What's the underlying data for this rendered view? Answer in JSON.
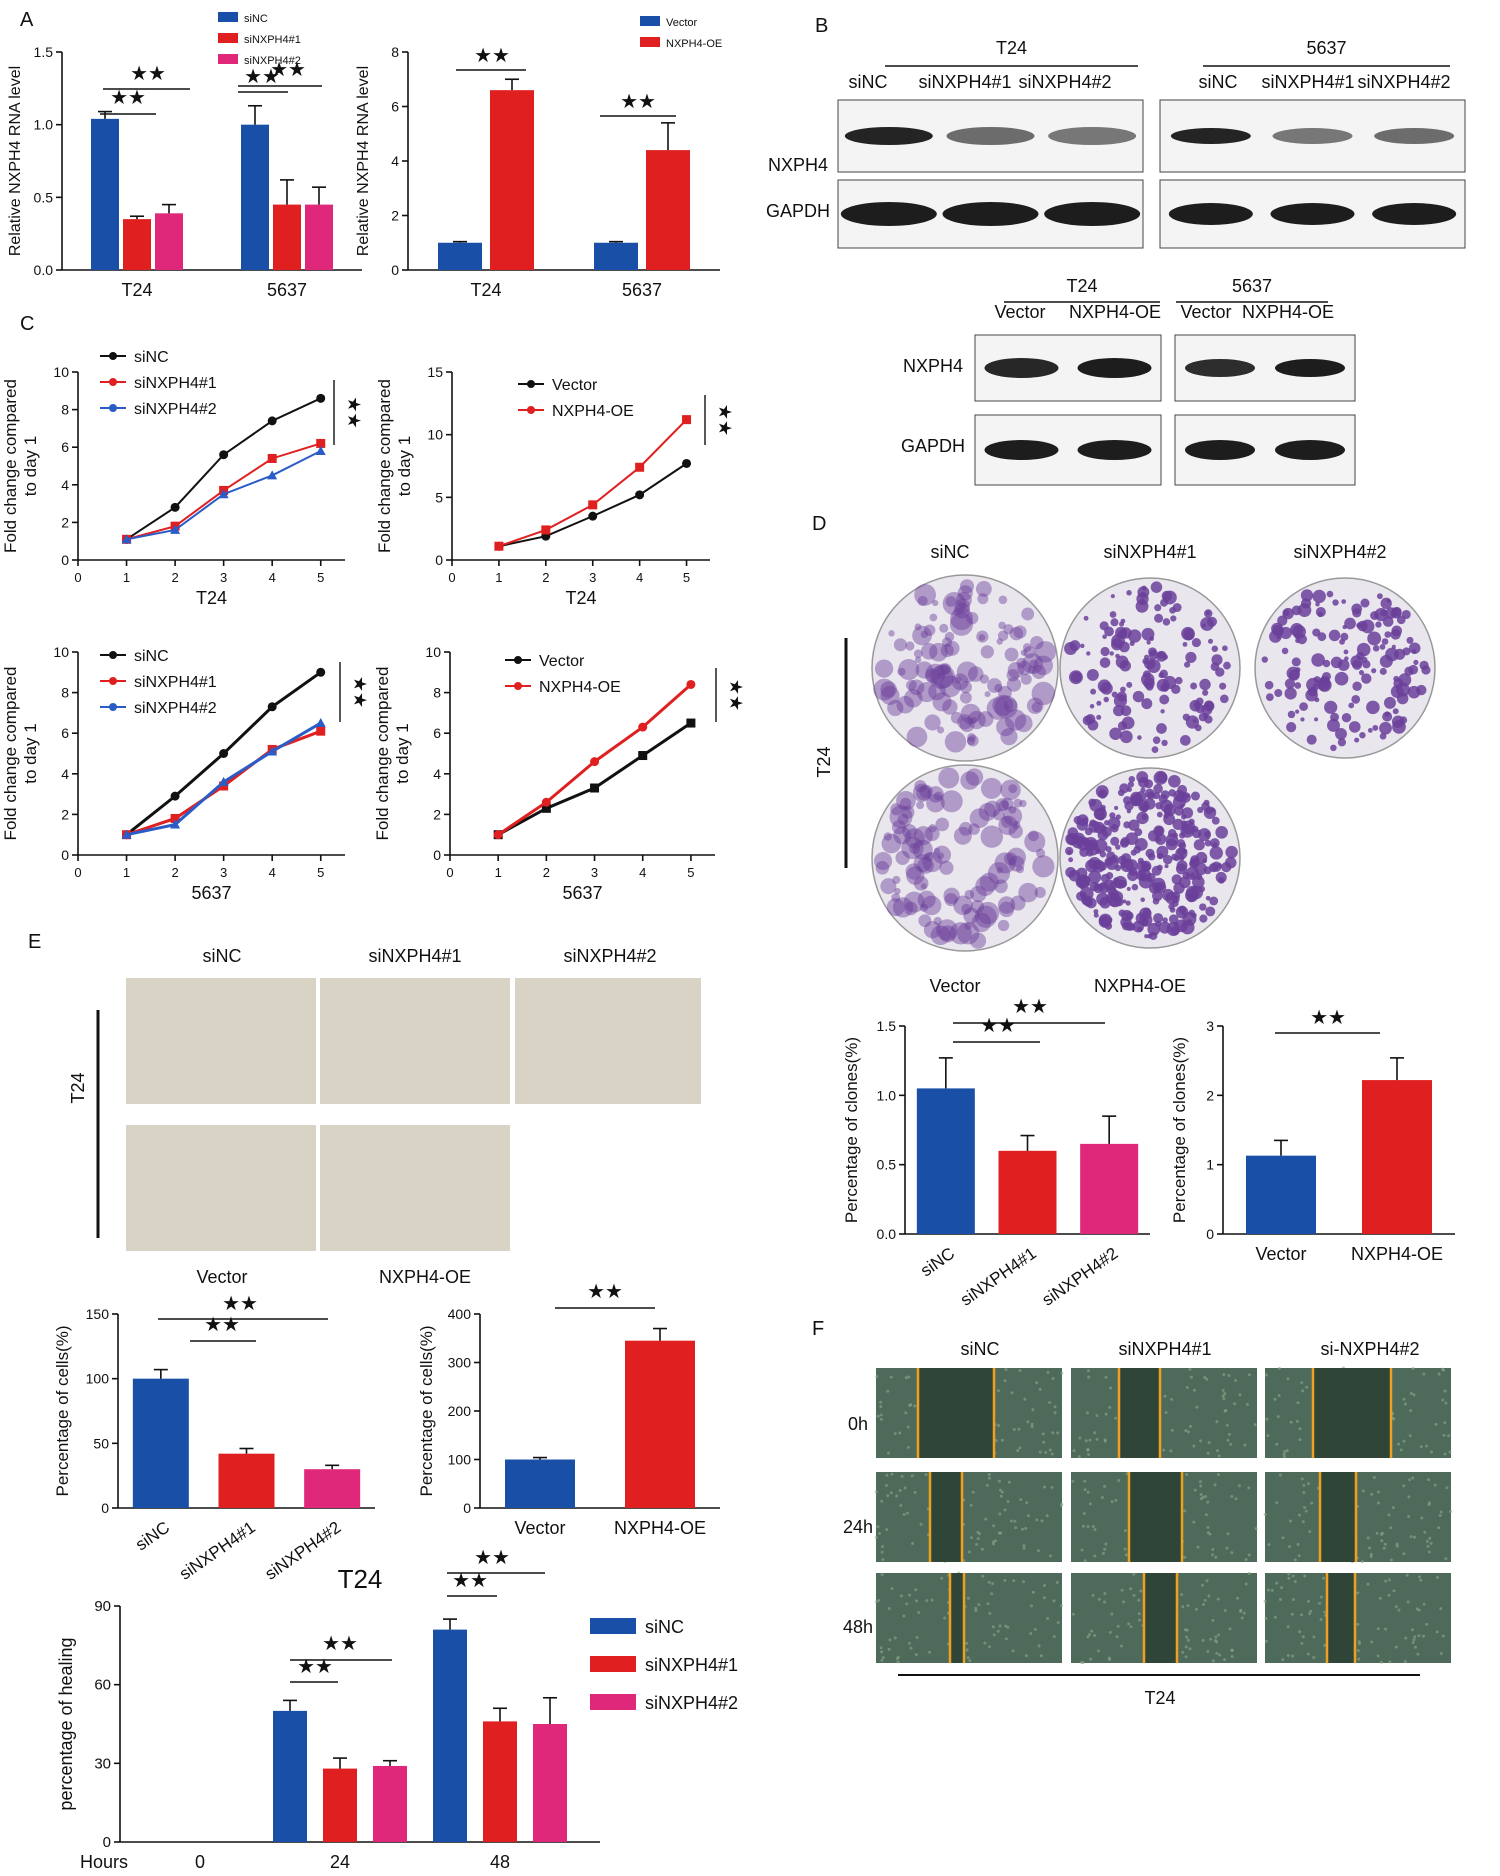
{
  "colors": {
    "blue": "#1a4fa8",
    "red": "#e02020",
    "pink": "#e0287a",
    "black": "#111111",
    "orange": "#f0a020",
    "purple": "#6a3f9a"
  },
  "panels": {
    "A": "A",
    "B": "B",
    "C": "C",
    "D": "D",
    "E": "E",
    "F": "F"
  },
  "star": "★★",
  "t24": "T24",
  "c5637": "5637",
  "blots": [
    {
      "cell": "T24",
      "lanes": [
        "siNC",
        "siNXPH4#1",
        "siNXPH4#2"
      ],
      "rows": [
        "NXPH4",
        "GAPDH"
      ]
    },
    {
      "cell": "5637",
      "lanes": [
        "siNC",
        "siNXPH4#1",
        "siNXPH4#2"
      ],
      "rows": []
    },
    {
      "cell": "T24",
      "lanes": [
        "Vector",
        "NXPH4-OE"
      ],
      "rows": [
        "NXPH4",
        "GAPDH"
      ]
    },
    {
      "cell": "5637",
      "lanes": [
        "Vector",
        "NXPH4-OE"
      ],
      "rows": []
    }
  ],
  "colony": {
    "cols": [
      "siNC",
      "siNXPH4#1",
      "siNXPH4#2"
    ],
    "row2": [
      "Vector",
      "NXPH4-OE"
    ],
    "side": "T24"
  },
  "transwell": {
    "cols": [
      "siNC",
      "siNXPH4#1",
      "siNXPH4#2"
    ],
    "row2": [
      "Vector",
      "NXPH4-OE"
    ],
    "side": "T24"
  },
  "wound": {
    "cols": [
      "siNC",
      "siNXPH4#1",
      "si-NXPH4#2"
    ],
    "rows": [
      "0h",
      "24h",
      "48h"
    ],
    "bottom": "T24"
  },
  "chart_data": [
    {
      "id": "A1",
      "type": "bar",
      "categories": [
        "T24",
        "5637"
      ],
      "ylabel": "Relative NXPH4 RNA level",
      "ylim": [
        0,
        1.5
      ],
      "yticks": [
        "0.0",
        "0.5",
        "1.0",
        "1.5"
      ],
      "series": [
        {
          "name": "siNC",
          "values": [
            1.04,
            1.0
          ],
          "err": [
            0.05,
            0.13
          ]
        },
        {
          "name": "siNXPH4#1",
          "values": [
            0.35,
            0.45
          ],
          "err": [
            0.02,
            0.17
          ]
        },
        {
          "name": "siNXPH4#2",
          "values": [
            0.39,
            0.45
          ],
          "err": [
            0.06,
            0.12
          ]
        }
      ]
    },
    {
      "id": "A2",
      "type": "bar",
      "categories": [
        "T24",
        "5637"
      ],
      "ylabel": "Relative NXPH4 RNA level",
      "ylim": [
        0,
        8
      ],
      "yticks": [
        "0",
        "2",
        "4",
        "6",
        "8"
      ],
      "series": [
        {
          "name": "Vector",
          "values": [
            1.0,
            1.0
          ],
          "err": [
            0.04,
            0.04
          ]
        },
        {
          "name": "NXPH4-OE",
          "values": [
            6.6,
            4.4
          ],
          "err": [
            0.4,
            1.0
          ]
        }
      ]
    },
    {
      "id": "C1",
      "type": "line",
      "x": [
        1,
        2,
        3,
        4,
        5
      ],
      "xticks": [
        "0",
        "1",
        "2",
        "3",
        "4",
        "5"
      ],
      "xlabel": "T24",
      "ylabel": "Fold change compared to day 1",
      "ylim": [
        0,
        10
      ],
      "yticks": [
        "0",
        "2",
        "4",
        "6",
        "8",
        "10"
      ],
      "series": [
        {
          "name": "siNC",
          "values": [
            1.1,
            2.8,
            5.6,
            7.4,
            8.6
          ]
        },
        {
          "name": "siNXPH4#1",
          "values": [
            1.1,
            1.8,
            3.7,
            5.4,
            6.2
          ]
        },
        {
          "name": "siNXPH4#2",
          "values": [
            1.1,
            1.6,
            3.5,
            4.5,
            5.8
          ]
        }
      ]
    },
    {
      "id": "C2",
      "type": "line",
      "x": [
        1,
        2,
        3,
        4,
        5
      ],
      "xticks": [
        "0",
        "1",
        "2",
        "3",
        "4",
        "5"
      ],
      "xlabel": "T24",
      "ylabel": "Fold change compared to day 1",
      "ylim": [
        0,
        15
      ],
      "yticks": [
        "0",
        "5",
        "10",
        "15"
      ],
      "series": [
        {
          "name": "Vector",
          "values": [
            1.1,
            1.9,
            3.5,
            5.2,
            7.7
          ]
        },
        {
          "name": "NXPH4-OE",
          "values": [
            1.1,
            2.4,
            4.4,
            7.4,
            11.2
          ]
        }
      ]
    },
    {
      "id": "C3",
      "type": "line",
      "x": [
        1,
        2,
        3,
        4,
        5
      ],
      "xticks": [
        "0",
        "1",
        "2",
        "3",
        "4",
        "5"
      ],
      "xlabel": "5637",
      "ylabel": "Fold change compared to day 1",
      "ylim": [
        0,
        10
      ],
      "yticks": [
        "0",
        "2",
        "4",
        "6",
        "8",
        "10"
      ],
      "series": [
        {
          "name": "siNC",
          "values": [
            1.0,
            2.9,
            5.0,
            7.3,
            9.0
          ]
        },
        {
          "name": "siNXPH4#1",
          "values": [
            1.0,
            1.8,
            3.4,
            5.2,
            6.1
          ]
        },
        {
          "name": "siNXPH4#2",
          "values": [
            1.0,
            1.5,
            3.6,
            5.1,
            6.5
          ]
        }
      ]
    },
    {
      "id": "C4",
      "type": "line",
      "x": [
        1,
        2,
        3,
        4,
        5
      ],
      "xticks": [
        "0",
        "1",
        "2",
        "3",
        "4",
        "5"
      ],
      "xlabel": "5637",
      "ylabel": "Fold change compared to day 1",
      "ylim": [
        0,
        10
      ],
      "yticks": [
        "0",
        "2",
        "4",
        "6",
        "8",
        "10"
      ],
      "series": [
        {
          "name": "Vector",
          "values": [
            1.0,
            2.3,
            3.3,
            4.9,
            6.5
          ]
        },
        {
          "name": "NXPH4-OE",
          "values": [
            1.0,
            2.6,
            4.6,
            6.3,
            8.4
          ]
        }
      ]
    },
    {
      "id": "D1",
      "type": "bar",
      "categories": [
        "siNC",
        "siNXPH4#1",
        "siNXPH4#2"
      ],
      "ylabel": "Percentage of clones(%)",
      "ylim": [
        0,
        1.5
      ],
      "yticks": [
        "0.0",
        "0.5",
        "1.0",
        "1.5"
      ],
      "values": [
        1.05,
        0.6,
        0.65
      ],
      "err": [
        0.22,
        0.11,
        0.2
      ]
    },
    {
      "id": "D2",
      "type": "bar",
      "categories": [
        "Vector",
        "NXPH4-OE"
      ],
      "ylabel": "Percentage of clones(%)",
      "ylim": [
        0,
        3
      ],
      "yticks": [
        "0",
        "1",
        "2",
        "3"
      ],
      "values": [
        1.13,
        2.22
      ],
      "err": [
        0.22,
        0.32
      ]
    },
    {
      "id": "E1",
      "type": "bar",
      "categories": [
        "siNC",
        "siNXPH4#1",
        "siNXPH4#2"
      ],
      "ylabel": "Percentage of cells(%)",
      "ylim": [
        0,
        150
      ],
      "yticks": [
        "0",
        "50",
        "100",
        "150"
      ],
      "values": [
        100,
        42,
        30
      ],
      "err": [
        7,
        4,
        3
      ]
    },
    {
      "id": "E2",
      "type": "bar",
      "categories": [
        "Vector",
        "NXPH4-OE"
      ],
      "ylabel": "Percentage of cells(%)",
      "ylim": [
        0,
        400
      ],
      "yticks": [
        "0",
        "100",
        "200",
        "300",
        "400"
      ],
      "values": [
        100,
        345
      ],
      "err": [
        4,
        25
      ]
    },
    {
      "id": "F1",
      "type": "bar",
      "title": "T24",
      "categories": [
        "0",
        "24",
        "48"
      ],
      "xlabel": "Hours",
      "ylabel": "percentage of  healing",
      "ylim": [
        0,
        90
      ],
      "yticks": [
        "0",
        "30",
        "60",
        "90"
      ],
      "series": [
        {
          "name": "siNC",
          "values": [
            0,
            50,
            81
          ],
          "err": [
            0,
            4,
            4
          ]
        },
        {
          "name": "siNXPH4#1",
          "values": [
            0,
            28,
            46
          ],
          "err": [
            0,
            4,
            5
          ]
        },
        {
          "name": "siNXPH4#2",
          "values": [
            0,
            29,
            45
          ],
          "err": [
            0,
            2,
            10
          ]
        }
      ]
    }
  ]
}
